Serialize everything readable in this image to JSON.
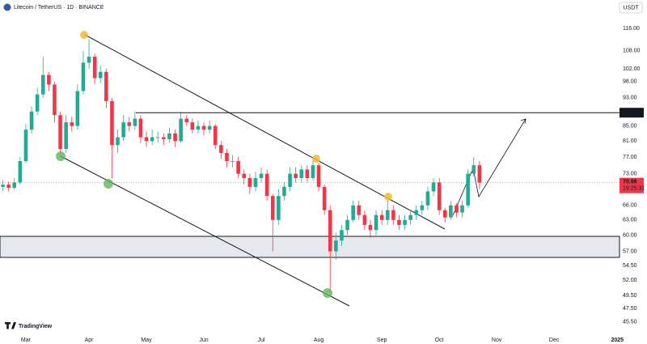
{
  "chart_data": {
    "type": "candlestick",
    "title": "Litecoin / TetherUS · 1D · BINANCE",
    "currency": "USDT",
    "brand": "TradingView",
    "countdown": "19:25:31",
    "level": 88.68,
    "log_scale": true,
    "grid": false,
    "up_color": "#22ab94",
    "down_color": "#f23645",
    "ylim": [
      44.1,
      127
    ],
    "yticks": [
      {
        "value": 116,
        "label": "116.00"
      },
      {
        "value": 108,
        "label": "108.00"
      },
      {
        "value": 102,
        "label": "102.00"
      },
      {
        "value": 98,
        "label": "98.00"
      },
      {
        "value": 93,
        "label": "93.00"
      },
      {
        "value": 85,
        "label": "85.00"
      },
      {
        "value": 81,
        "label": "81.00"
      },
      {
        "value": 77,
        "label": "77.00"
      },
      {
        "value": 73,
        "label": "73.00"
      },
      {
        "value": 66,
        "label": "66.00"
      },
      {
        "value": 63,
        "label": "63.00"
      },
      {
        "value": 60,
        "label": "60.00"
      },
      {
        "value": 57,
        "label": "57.00"
      },
      {
        "value": 54.5,
        "label": "54.50"
      },
      {
        "value": 52,
        "label": "52.00"
      },
      {
        "value": 49.5,
        "label": "49.50"
      },
      {
        "value": 47.5,
        "label": "47.50"
      },
      {
        "value": 45.5,
        "label": "45.50"
      }
    ],
    "categories": [
      null,
      null,
      null,
      null,
      "Mar",
      null,
      null,
      null,
      null,
      null,
      null,
      null,
      null,
      null,
      null,
      "Apr",
      null,
      null,
      null,
      null,
      null,
      null,
      null,
      null,
      null,
      "May",
      null,
      null,
      null,
      null,
      null,
      null,
      null,
      null,
      null,
      "Jun",
      null,
      null,
      null,
      null,
      null,
      null,
      null,
      null,
      null,
      "Jul",
      null,
      null,
      null,
      null,
      null,
      null,
      null,
      null,
      null,
      "Aug",
      null,
      null,
      null,
      null,
      null,
      null,
      null,
      null,
      null,
      null,
      "Sep",
      null,
      null,
      null,
      null,
      null,
      null,
      null,
      null,
      null,
      "Oct",
      null,
      null,
      null,
      null,
      null,
      null,
      null,
      null,
      null,
      "Nov",
      null,
      null,
      null,
      null,
      null,
      null,
      null,
      null,
      null,
      "Dec",
      null,
      null,
      null,
      null,
      null,
      null,
      null,
      null,
      null,
      null,
      "2025"
    ],
    "open": [
      70,
      70.5,
      69.8,
      71,
      76,
      84,
      89,
      94,
      100,
      97,
      88,
      79,
      86,
      85,
      95,
      104,
      106,
      99,
      101,
      92,
      80,
      82,
      86,
      85,
      87,
      82,
      81,
      82,
      82,
      81.5,
      83,
      81,
      87,
      86,
      84,
      85,
      84,
      85,
      80,
      78,
      76,
      76,
      73,
      72,
      70,
      72,
      73,
      68,
      63,
      68,
      70,
      73,
      72,
      74,
      72,
      75,
      70,
      65,
      57,
      59,
      61,
      63,
      66,
      64,
      62,
      61,
      64,
      63,
      65,
      63,
      62,
      63,
      64,
      65,
      66,
      69,
      71,
      65,
      63.5,
      66,
      64.5,
      66,
      73,
      75,
      null,
      null,
      null,
      null,
      null,
      null,
      null,
      null,
      null,
      null,
      null,
      null,
      null,
      null,
      null,
      null,
      null,
      null,
      null,
      null,
      null,
      null,
      null,
      null
    ],
    "high": [
      71.5,
      71.2,
      72,
      77,
      85.5,
      90.5,
      96,
      106,
      101,
      98,
      89,
      88,
      87.5,
      97,
      108,
      112,
      107,
      103,
      102,
      93,
      84,
      88,
      87.5,
      89,
      88,
      83.5,
      84,
      83.5,
      83,
      84.5,
      84,
      89,
      88,
      87,
      86.5,
      86,
      86.5,
      85.5,
      81,
      79,
      77.5,
      77,
      74,
      73,
      73.5,
      74.5,
      74,
      68.5,
      69.5,
      71,
      74.5,
      74.5,
      75,
      75,
      77,
      75.5,
      70.5,
      66,
      60.5,
      62,
      64,
      67,
      67,
      65,
      63,
      65,
      65,
      67,
      66,
      64,
      64,
      65,
      66,
      67,
      70,
      72,
      72,
      65.5,
      67,
      66.5,
      67,
      74,
      77,
      76,
      null,
      null,
      null,
      null,
      null,
      null,
      null,
      null,
      null,
      null,
      null,
      null,
      null,
      null,
      null,
      null,
      null,
      null,
      null,
      null,
      null,
      null,
      null,
      null
    ],
    "low": [
      69,
      69,
      69.3,
      70.5,
      75.5,
      83,
      88,
      93,
      95,
      86,
      77,
      78,
      83.5,
      84,
      94,
      102,
      97,
      97.5,
      90,
      72,
      78,
      81,
      83.5,
      84,
      80.5,
      79.5,
      80,
      80.5,
      80,
      80.5,
      79.5,
      80.5,
      85,
      83,
      83,
      82.5,
      83,
      79,
      76.5,
      74.5,
      74.5,
      72,
      70.5,
      68.5,
      69,
      71,
      67,
      57,
      62,
      67,
      69,
      71,
      71,
      71,
      71.5,
      69,
      64,
      50,
      55.5,
      58,
      60,
      62.5,
      63,
      61,
      59.5,
      60,
      62,
      62,
      62,
      61,
      61,
      62,
      63,
      64,
      65,
      68,
      64,
      62.5,
      63,
      63.5,
      63.5,
      65.5,
      72.5,
      69.5,
      null,
      null,
      null,
      null,
      null,
      null,
      null,
      null,
      null,
      null,
      null,
      null,
      null,
      null,
      null,
      null,
      null,
      null,
      null,
      null,
      null,
      null,
      null,
      null
    ],
    "close": [
      70.5,
      69.8,
      71,
      76,
      84,
      89,
      94,
      100,
      97,
      88,
      79,
      86,
      85,
      95,
      104,
      106,
      99,
      101,
      92,
      80,
      82,
      86,
      85,
      87,
      82,
      81,
      82,
      82,
      81.5,
      83,
      81,
      87,
      86,
      84,
      85,
      84,
      85,
      80,
      78,
      76,
      76,
      73,
      72,
      70,
      72,
      73,
      68,
      63,
      68,
      70,
      73,
      72,
      74,
      72,
      75,
      70,
      65,
      57,
      59,
      61,
      63,
      66,
      64,
      62,
      61,
      64,
      63,
      65,
      63,
      62,
      63,
      64,
      65,
      66,
      69,
      71,
      65,
      63.5,
      66,
      64.5,
      66,
      73,
      75,
      70.96,
      null,
      null,
      null,
      null,
      null,
      null,
      null,
      null,
      null,
      null,
      null,
      null,
      null,
      null,
      null,
      null,
      null,
      null,
      null,
      null,
      null,
      null,
      null,
      null
    ]
  }
}
